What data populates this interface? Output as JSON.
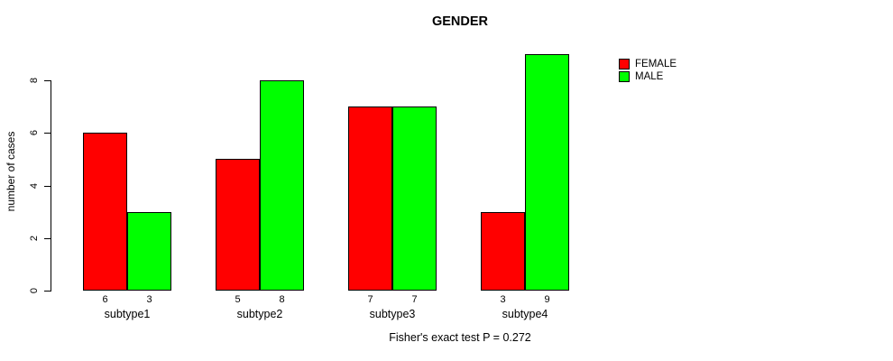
{
  "chart_data": {
    "type": "bar",
    "title": "GENDER",
    "xlabel": "",
    "ylabel": "number of cases",
    "categories": [
      "subtype1",
      "subtype2",
      "subtype3",
      "subtype4"
    ],
    "series": [
      {
        "name": "FEMALE",
        "color": "#ff0000",
        "values": [
          6,
          5,
          7,
          3
        ]
      },
      {
        "name": "MALE",
        "color": "#00ff00",
        "values": [
          3,
          8,
          7,
          9
        ]
      }
    ],
    "bar_value_labels": [
      [
        6,
        3
      ],
      [
        5,
        8
      ],
      [
        7,
        7
      ],
      [
        3,
        9
      ]
    ],
    "yticks": [
      0,
      2,
      4,
      6,
      8
    ],
    "ylim": [
      0,
      9
    ],
    "grid": false,
    "legend": {
      "position": "top-right",
      "entries": [
        "FEMALE",
        "MALE"
      ]
    },
    "annotation": "Fisher's exact test P = 0.272",
    "colors": {
      "female": "#ff0000",
      "male": "#00ff00",
      "axis": "#000000",
      "background": "#ffffff"
    }
  }
}
